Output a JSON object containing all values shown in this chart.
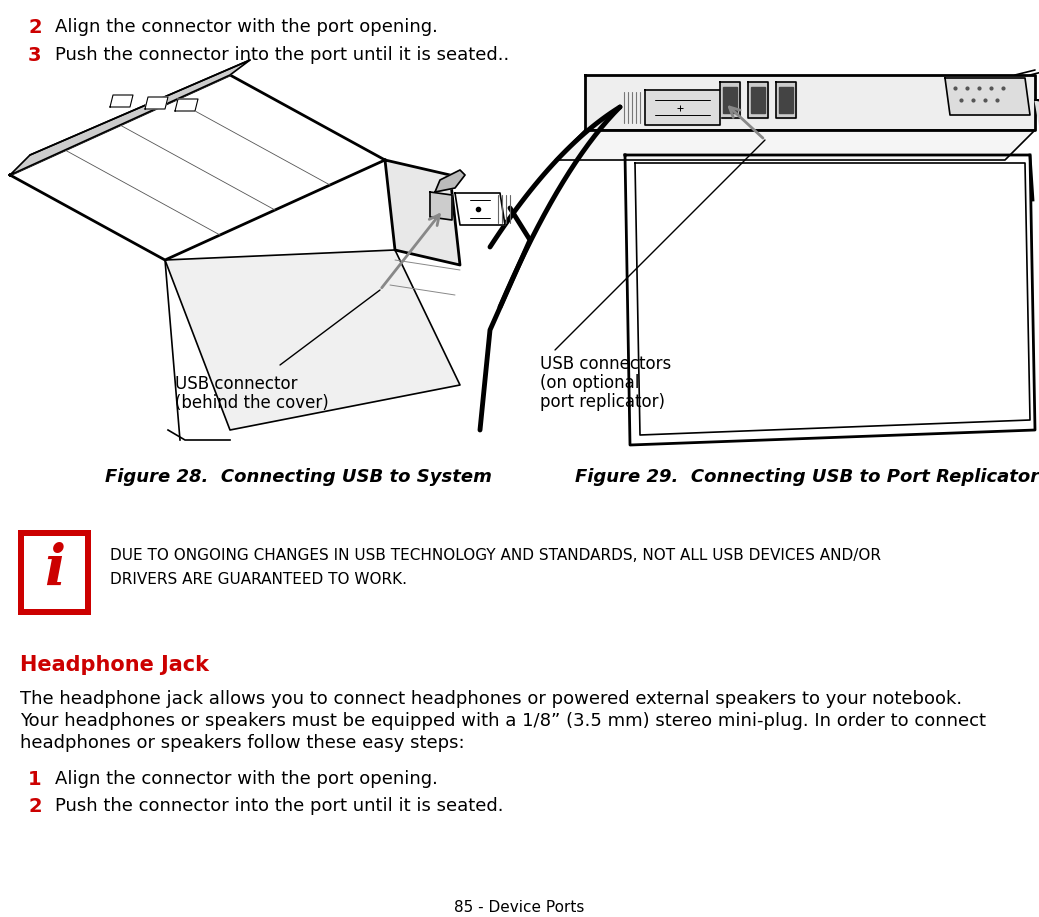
{
  "bg_color": "#ffffff",
  "red_color": "#cc0000",
  "text_color": "#000000",
  "line1_num": "2",
  "line1_text": "Align the connector with the port opening.",
  "line2_num": "3",
  "line2_text": "Push the connector into the port until it is seated..",
  "fig28_caption": "Figure 28.  Connecting USB to System",
  "fig29_caption": "Figure 29.  Connecting USB to Port Replicator",
  "usb_label1_line1": "USB connector",
  "usb_label1_line2": "(behind the cover)",
  "usb_label2_line1": "USB connectors",
  "usb_label2_line2": "(on optional",
  "usb_label2_line3": "port replicator)",
  "info_line1": "DUE TO ONGOING CHANGES IN USB TECHNOLOGY AND STANDARDS, NOT ALL USB DEVICES AND/OR",
  "info_line2": "DRIVERS ARE GUARANTEED TO WORK.",
  "headphone_title": "Headphone Jack",
  "body_line1": "The headphone jack allows you to connect headphones or powered external speakers to your notebook.",
  "body_line2": "Your headphones or speakers must be equipped with a 1/8” (3.5 mm) stereo mini-plug. In order to connect",
  "body_line3": "headphones or speakers follow these easy steps:",
  "step_hp1_num": "1",
  "step_hp1_text": "Align the connector with the port opening.",
  "step_hp2_num": "2",
  "step_hp2_text": "Push the connector into the port until it is seated.",
  "footer": "85 - Device Ports",
  "lw": 1.2,
  "lw_thick": 2.0,
  "arrow_color": "#888888",
  "line_color": "#000000"
}
